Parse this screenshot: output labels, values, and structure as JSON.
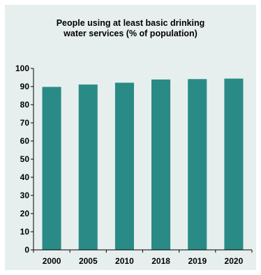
{
  "chart_data": {
    "type": "bar",
    "title": "People using at least basic drinking\nwater services (% of population)",
    "xlabel": "",
    "ylabel": "",
    "categories": [
      "2000",
      "2005",
      "2010",
      "2018",
      "2019",
      "2020"
    ],
    "values": [
      89.8,
      91.1,
      92.1,
      93.9,
      94.1,
      94.4
    ],
    "ylim": [
      0,
      100
    ],
    "yticks": [
      "0",
      "10",
      "20",
      "30",
      "40",
      "50",
      "60",
      "70",
      "80",
      "90",
      "100"
    ],
    "grid": false,
    "legend": "none",
    "bar_color": "#2a8b86",
    "background_color": "#e7efee"
  }
}
